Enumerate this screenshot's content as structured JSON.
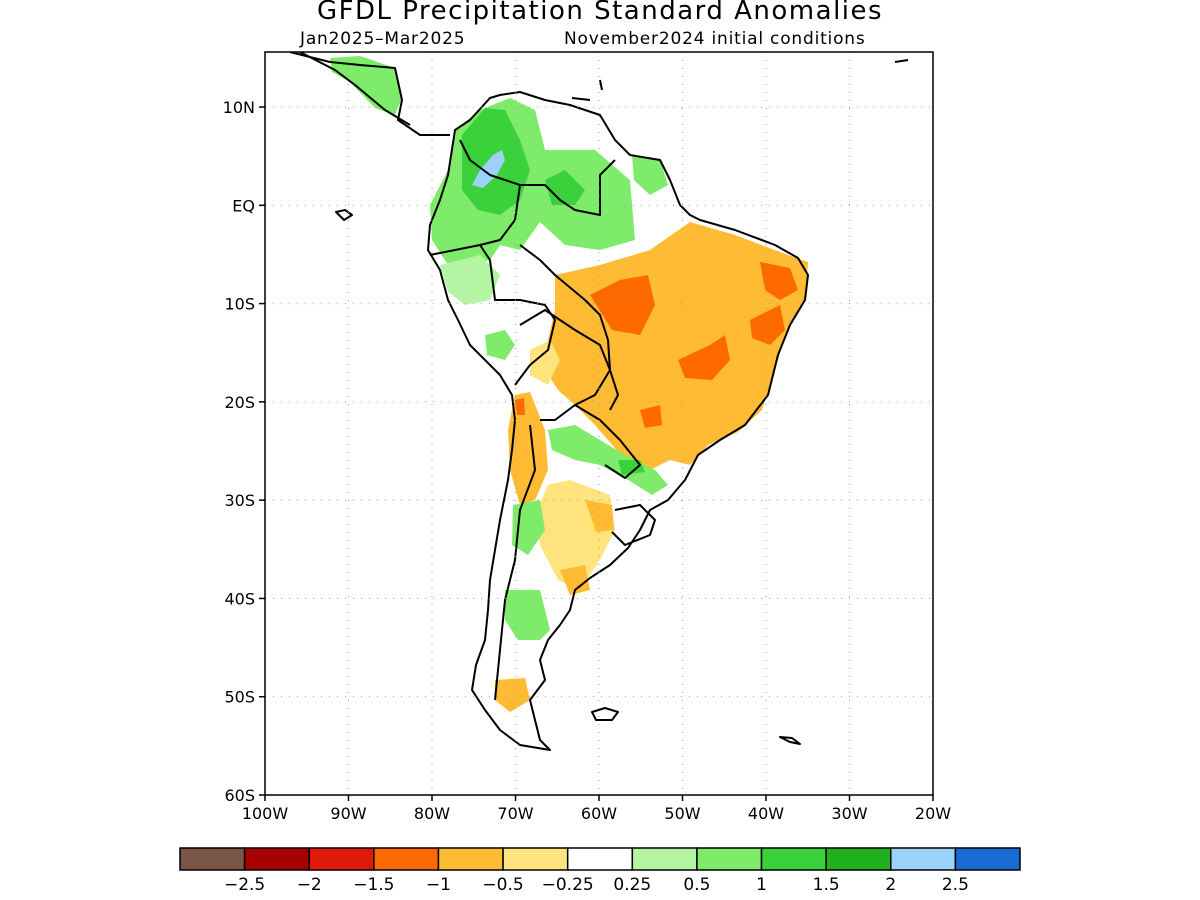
{
  "title": "GFDL Precipitation Standard Anomalies",
  "period": "Jan2025–Mar2025",
  "initial_conditions": "November2024 initial conditions",
  "lat_labels": [
    "10N",
    "EQ",
    "10S",
    "20S",
    "30S",
    "40S",
    "50S",
    "60S"
  ],
  "lat_values": [
    10,
    0,
    -10,
    -20,
    -30,
    -40,
    -50,
    -60
  ],
  "lon_labels": [
    "100W",
    "90W",
    "80W",
    "70W",
    "60W",
    "50W",
    "40W",
    "30W",
    "20W"
  ],
  "lon_values": [
    -100,
    -90,
    -80,
    -70,
    -60,
    -50,
    -40,
    -30,
    -20
  ],
  "colorbar": {
    "colors": [
      "#7b5546",
      "#a80000",
      "#e01a0a",
      "#ff6a00",
      "#ffbb33",
      "#ffe47e",
      "#ffffff",
      "#b3f5a3",
      "#7eec6a",
      "#3bd13b",
      "#1eb01e",
      "#9ad2fa",
      "#1a6ad6"
    ],
    "labels": [
      "−2.5",
      "−2",
      "−1.5",
      "−1",
      "−0.5",
      "−0.25",
      "0.25",
      "0.5",
      "1",
      "1.5",
      "2",
      "2.5"
    ]
  },
  "anomaly_regions": [
    {
      "name": "northern-colombia",
      "value": 1.5,
      "lon": [
        -78,
        -71
      ],
      "lat": [
        0,
        10
      ]
    },
    {
      "name": "magdalena-valley",
      "value": 2.5,
      "lon": [
        -75,
        -73
      ],
      "lat": [
        4,
        8
      ]
    },
    {
      "name": "venezuela-guyana",
      "value": 1,
      "lon": [
        -68,
        -55
      ],
      "lat": [
        -3,
        7
      ]
    },
    {
      "name": "northeast-brazil",
      "value": -1,
      "lon": [
        -50,
        -35
      ],
      "lat": [
        -20,
        -3
      ]
    },
    {
      "name": "central-brazil",
      "value": -1.5,
      "lon": [
        -60,
        -40
      ],
      "lat": [
        -20,
        -8
      ]
    },
    {
      "name": "southern-brazil",
      "value": 0.5,
      "lon": [
        -58,
        -48
      ],
      "lat": [
        -29,
        -22
      ]
    },
    {
      "name": "chile-argentina",
      "value": -0.5,
      "lon": [
        -71,
        -60
      ],
      "lat": [
        -38,
        -20
      ]
    },
    {
      "name": "patagonia",
      "value": 0.5,
      "lon": [
        -72,
        -65
      ],
      "lat": [
        -43,
        -36
      ]
    }
  ]
}
